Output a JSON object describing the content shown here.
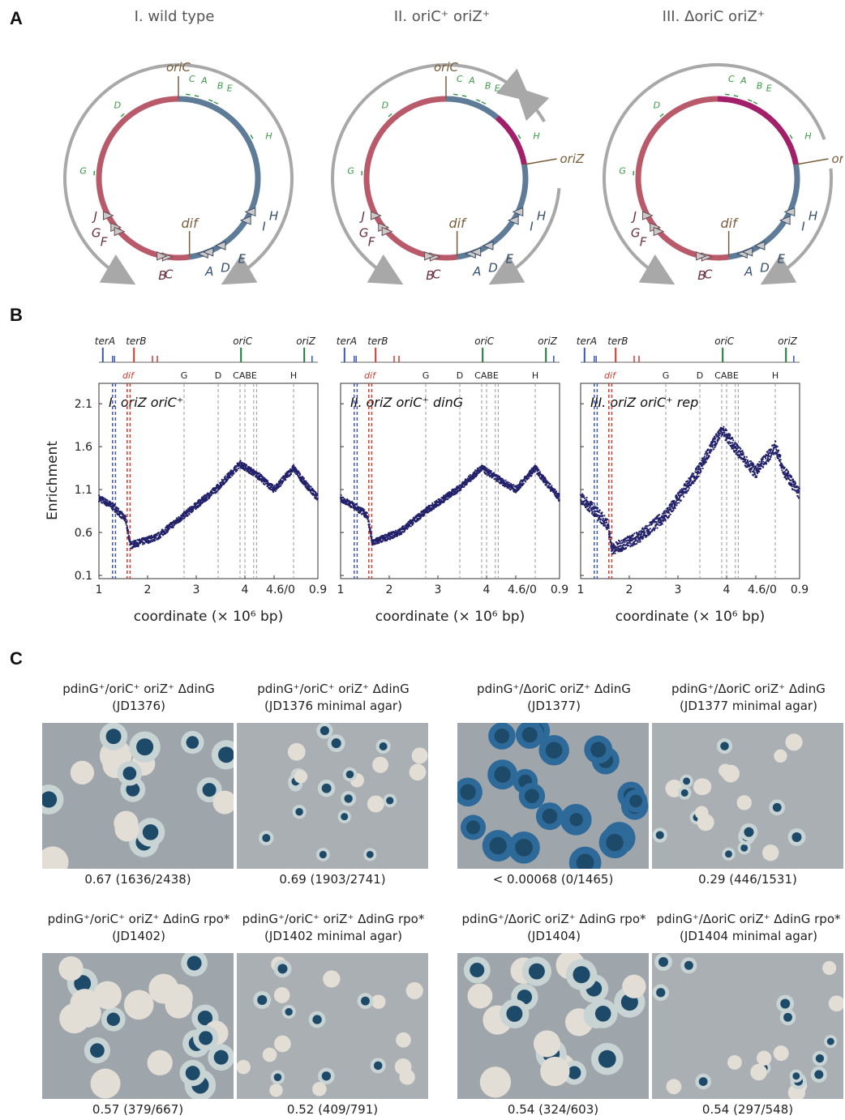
{
  "panels": {
    "a": "A",
    "b": "B",
    "c": "C"
  },
  "panelA": {
    "maps": [
      {
        "title": "I. wild type",
        "arc": "none"
      },
      {
        "title": "II. oriC⁺ oriZ⁺",
        "arc": "replichore"
      },
      {
        "title": "III. ΔoriC oriZ⁺",
        "arc": "full"
      }
    ],
    "labels": {
      "oriC": "oriC",
      "oriZ": "oriZ",
      "dif": "dif"
    },
    "green_sites": [
      "C",
      "A",
      "B",
      "E",
      "D",
      "H",
      "G"
    ],
    "ter_left": [
      "J",
      "G",
      "F",
      "B",
      "C"
    ],
    "ter_right": [
      "H",
      "I",
      "A",
      "D",
      "E"
    ],
    "colors": {
      "left_arm": "#b85a6a",
      "right_arm": "#5e7b98",
      "oriZ_segment": "#a2206a",
      "arrows": "#a8a8a8",
      "sites": "#3c9a46",
      "origin": "#7a5c3a"
    }
  },
  "panelB": {
    "tracks": {
      "top": [
        "terA",
        "terB",
        "oriC",
        "oriZ"
      ],
      "bottom": [
        "dif",
        "G",
        "D",
        "CABE",
        "H"
      ]
    },
    "plot_titles": [
      "I. oriZ oriC⁺",
      "II. oriZ oriC⁺ dinG",
      "III. oriZ oriC⁺ rep"
    ],
    "ylabel": "Enrichment",
    "xlabel": "coordinate (× 10⁶ bp)",
    "yticks": [
      "2.1",
      "1.6",
      "1.1",
      "0.6",
      "0.1"
    ],
    "xticks": [
      "1",
      "2",
      "3",
      "4",
      "4.6/0",
      "0.9"
    ],
    "colors": {
      "points": "#23216a",
      "ter": "#3a56b0",
      "dif": "#d23a2e",
      "ori": "#1e7a3a"
    }
  },
  "chart_data": [
    {
      "type": "scatter",
      "title": "I. oriZ oriC⁺",
      "xlabel": "coordinate (× 10⁶ bp)",
      "ylabel": "Enrichment",
      "ylim": [
        0.1,
        2.3
      ],
      "x": [
        1,
        1.3,
        1.55,
        1.65,
        2.2,
        2.75,
        3.4,
        3.9,
        4.3,
        4.6,
        0.4,
        0.6,
        0.9
      ],
      "y": [
        1.0,
        0.9,
        0.75,
        0.45,
        0.55,
        0.8,
        1.1,
        1.4,
        1.25,
        1.1,
        1.35,
        1.2,
        1.0
      ]
    },
    {
      "type": "scatter",
      "title": "II. oriZ oriC⁺ dinG",
      "xlabel": "coordinate (× 10⁶ bp)",
      "ylabel": "Enrichment",
      "ylim": [
        0.1,
        2.3
      ],
      "x": [
        1,
        1.3,
        1.55,
        1.65,
        2.2,
        2.75,
        3.4,
        3.9,
        4.3,
        4.6,
        0.4,
        0.6,
        0.9
      ],
      "y": [
        1.0,
        0.9,
        0.8,
        0.48,
        0.6,
        0.85,
        1.1,
        1.35,
        1.2,
        1.1,
        1.35,
        1.2,
        1.0
      ]
    },
    {
      "type": "scatter",
      "title": "III. oriZ oriC⁺ rep",
      "xlabel": "coordinate (× 10⁶ bp)",
      "ylabel": "Enrichment",
      "ylim": [
        0.1,
        2.3
      ],
      "x": [
        1,
        1.3,
        1.55,
        1.65,
        2.2,
        2.75,
        3.4,
        3.9,
        4.3,
        4.6,
        0.4,
        0.6,
        0.9
      ],
      "y": [
        1.0,
        0.85,
        0.7,
        0.4,
        0.55,
        0.8,
        1.3,
        1.8,
        1.5,
        1.3,
        1.6,
        1.3,
        1.05
      ]
    }
  ],
  "panelC": {
    "strains": [
      {
        "caption": "pdinG⁺/oriC⁺ oriZ⁺ ΔdinG",
        "strain": "(JD1376)",
        "ratio": "0.67 (1636/2438)"
      },
      {
        "caption": "pdinG⁺/oriC⁺ oriZ⁺ ΔdinG",
        "strain": "(JD1376 minimal agar)",
        "ratio": "0.69 (1903/2741)"
      },
      {
        "caption": "pdinG⁺/ΔoriC oriZ⁺ ΔdinG",
        "strain": "(JD1377)",
        "ratio": "< 0.00068 (0/1465)"
      },
      {
        "caption": "pdinG⁺/ΔoriC oriZ⁺ ΔdinG",
        "strain": "(JD1377 minimal agar)",
        "ratio": "0.29 (446/1531)"
      },
      {
        "caption": "pdinG⁺/oriC⁺ oriZ⁺ ΔdinG rpo*",
        "strain": "(JD1402)",
        "ratio": "0.57 (379/667)"
      },
      {
        "caption": "pdinG⁺/oriC⁺ oriZ⁺ ΔdinG rpo*",
        "strain": "(JD1402 minimal agar)",
        "ratio": "0.52 (409/791)"
      },
      {
        "caption": "pdinG⁺/ΔoriC oriZ⁺ ΔdinG rpo*",
        "strain": "(JD1404)",
        "ratio": "0.54 (324/603)"
      },
      {
        "caption": "pdinG⁺/ΔoriC oriZ⁺ ΔdinG rpo*",
        "strain": "(JD1404 minimal agar)",
        "ratio": "0.54 (297/548)"
      }
    ]
  }
}
